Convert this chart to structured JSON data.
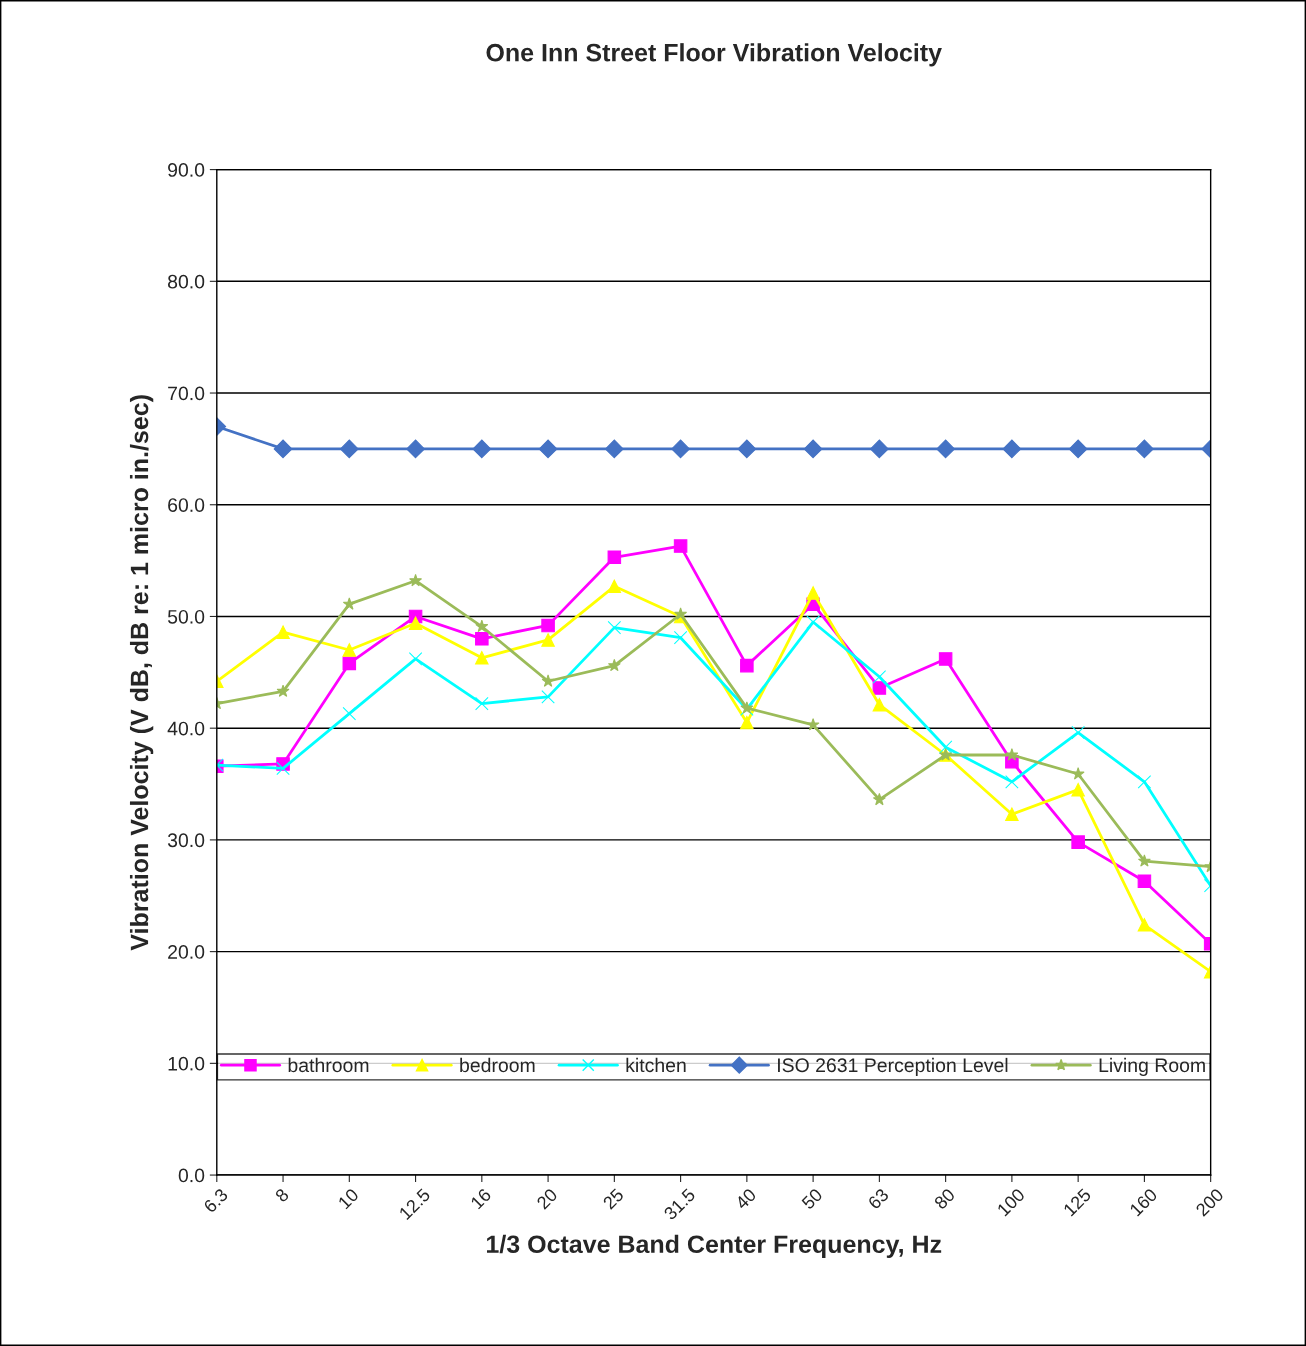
{
  "chart_data": {
    "type": "line",
    "title": "One Inn Street Floor Vibration Velocity",
    "xlabel": "1/3 Octave Band Center Frequency, Hz",
    "ylabel": "Vibration Velocity (V dB, dB re: 1 micro in./sec)",
    "categories": [
      "6.3",
      "8",
      "10",
      "12.5",
      "16",
      "20",
      "25",
      "31.5",
      "40",
      "50",
      "63",
      "80",
      "100",
      "125",
      "160",
      "200"
    ],
    "series": [
      {
        "name": "bathroom",
        "color": "#ff00ff",
        "marker": "square",
        "values": [
          36.6,
          36.8,
          45.8,
          50.0,
          48.0,
          49.2,
          55.3,
          56.3,
          45.6,
          51.1,
          43.6,
          46.2,
          37.0,
          29.8,
          26.3,
          20.7
        ]
      },
      {
        "name": "bedroom",
        "color": "#ffff00",
        "marker": "triangle",
        "values": [
          44.2,
          48.6,
          47.0,
          49.4,
          46.3,
          47.9,
          52.7,
          50.0,
          40.5,
          52.1,
          42.1,
          37.6,
          32.3,
          34.5,
          22.4,
          18.2
        ]
      },
      {
        "name": "kitchen",
        "color": "#00ffff",
        "marker": "cross",
        "values": [
          36.7,
          36.4,
          41.3,
          46.2,
          42.2,
          42.8,
          49.0,
          48.1,
          41.7,
          49.5,
          44.6,
          38.3,
          35.2,
          39.6,
          35.2,
          25.9
        ]
      },
      {
        "name": "ISO 2631 Perception Level",
        "color": "#4472c4",
        "marker": "diamond",
        "values": [
          67,
          65,
          65,
          65,
          65,
          65,
          65,
          65,
          65,
          65,
          65,
          65,
          65,
          65,
          65,
          65
        ]
      },
      {
        "name": "Living Room",
        "color": "#9bbb59",
        "marker": "star",
        "values": [
          42.2,
          43.3,
          51.1,
          53.2,
          49.1,
          44.2,
          45.6,
          50.2,
          41.8,
          40.3,
          33.6,
          37.6,
          37.6,
          35.9,
          28.1,
          27.6
        ]
      }
    ],
    "ylim": [
      0,
      90
    ],
    "yticks": [
      {
        "value": 0,
        "label": "0.0"
      },
      {
        "value": 10,
        "label": "10.0"
      },
      {
        "value": 20,
        "label": "20.0"
      },
      {
        "value": 30,
        "label": "30.0"
      },
      {
        "value": 40,
        "label": "40.0"
      },
      {
        "value": 50,
        "label": "50.0"
      },
      {
        "value": 60,
        "label": "60.0"
      },
      {
        "value": 70,
        "label": "70.0"
      },
      {
        "value": 80,
        "label": "80.0"
      },
      {
        "value": 90,
        "label": "90.0"
      }
    ],
    "grid": "y",
    "legend": "bottom",
    "line_style": "solid"
  }
}
